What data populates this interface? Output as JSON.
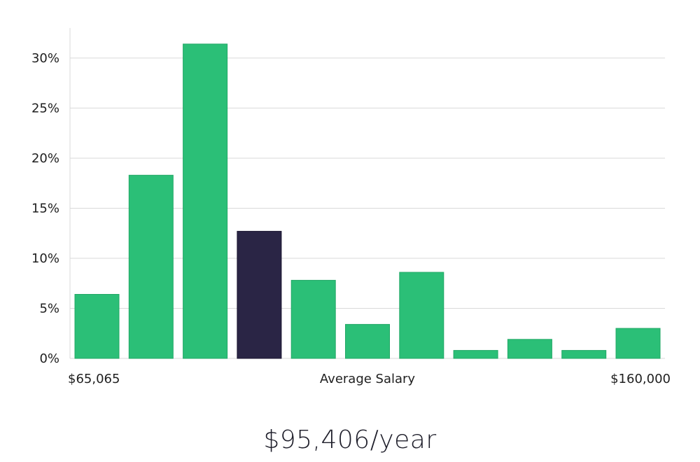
{
  "chart_data": {
    "type": "bar",
    "categories": [
      "1",
      "2",
      "3",
      "4",
      "5",
      "6",
      "7",
      "8",
      "9",
      "10",
      "11"
    ],
    "values": [
      6.4,
      18.3,
      31.4,
      12.7,
      7.8,
      3.4,
      8.6,
      0.8,
      1.9,
      0.8,
      3.0
    ],
    "highlight_index": 3,
    "ylim": [
      0,
      33
    ],
    "yticks": [
      0,
      5,
      10,
      15,
      20,
      25,
      30
    ],
    "ytick_labels": [
      "0%",
      "5%",
      "10%",
      "15%",
      "20%",
      "25%",
      "30%"
    ],
    "x_min_label": "$65,065",
    "x_max_label": "$160,000",
    "xlabel": "Average Salary",
    "grid": true,
    "colors": {
      "bar": "#2bbf77",
      "highlight": "#2a2545",
      "bar_edge": "#22a866"
    }
  },
  "salary_text": "$95,406/year"
}
